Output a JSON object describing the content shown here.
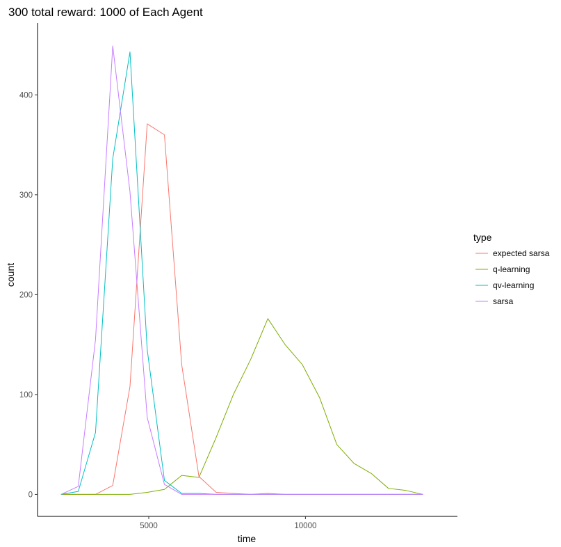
{
  "chart_data": {
    "type": "line",
    "title": "300 total reward: 1000 of Each Agent",
    "xlabel": "time",
    "ylabel": "count",
    "xlim": [
      1450,
      14850
    ],
    "ylim": [
      -22,
      472
    ],
    "xticks": [
      5000,
      10000
    ],
    "yticks": [
      0,
      100,
      200,
      300,
      400
    ],
    "xtick_labels": [
      "5000",
      "10000"
    ],
    "ytick_labels": [
      "0",
      "100",
      "200",
      "300",
      "400"
    ],
    "grid": false,
    "legend": {
      "title": "type",
      "placement": "right"
    },
    "series": [
      {
        "name": "expected sarsa",
        "color": "#F8766D",
        "x": [
          2200,
          2750,
          3300,
          3850,
          4400,
          4950,
          5500,
          6050,
          6600,
          7150,
          7700,
          8250,
          8800,
          9350,
          9900,
          10450,
          11000,
          11550,
          12100,
          12650,
          13200,
          13750
        ],
        "y": [
          0,
          0,
          0,
          9,
          108,
          371,
          360,
          130,
          18,
          2,
          1,
          0,
          1,
          0,
          0,
          0,
          0,
          0,
          0,
          0,
          0,
          0
        ]
      },
      {
        "name": "q-learning",
        "color": "#7CAE00",
        "x": [
          2200,
          2750,
          3300,
          3850,
          4400,
          4950,
          5500,
          6050,
          6600,
          7150,
          7700,
          8250,
          8800,
          9350,
          9900,
          10450,
          11000,
          11550,
          12100,
          12650,
          13200,
          13750
        ],
        "y": [
          0,
          0,
          0,
          0,
          0,
          2,
          5,
          19,
          17,
          57,
          100,
          135,
          176,
          150,
          130,
          97,
          50,
          31,
          21,
          6,
          4,
          0
        ]
      },
      {
        "name": "qv-learning",
        "color": "#00BFC4",
        "x": [
          2200,
          2750,
          3300,
          3850,
          4400,
          4950,
          5500,
          6050,
          6600,
          7150,
          7700,
          8250,
          8800,
          9350,
          9900,
          10450,
          11000,
          11550,
          12100,
          12650,
          13200,
          13750
        ],
        "y": [
          0,
          3,
          62,
          336,
          443,
          145,
          14,
          1,
          1,
          0,
          0,
          0,
          0,
          0,
          0,
          0,
          0,
          0,
          0,
          0,
          0,
          0
        ]
      },
      {
        "name": "sarsa",
        "color": "#C77CFF",
        "x": [
          2200,
          2750,
          3300,
          3850,
          4400,
          4950,
          5500,
          6050,
          6600,
          7150,
          7700,
          8250,
          8800,
          9350,
          9900,
          10450,
          11000,
          11550,
          12100,
          12650,
          13200,
          13750
        ],
        "y": [
          0,
          8,
          155,
          449,
          303,
          77,
          10,
          0,
          0,
          0,
          0,
          0,
          0,
          0,
          0,
          0,
          0,
          0,
          0,
          0,
          0,
          0
        ]
      }
    ]
  }
}
